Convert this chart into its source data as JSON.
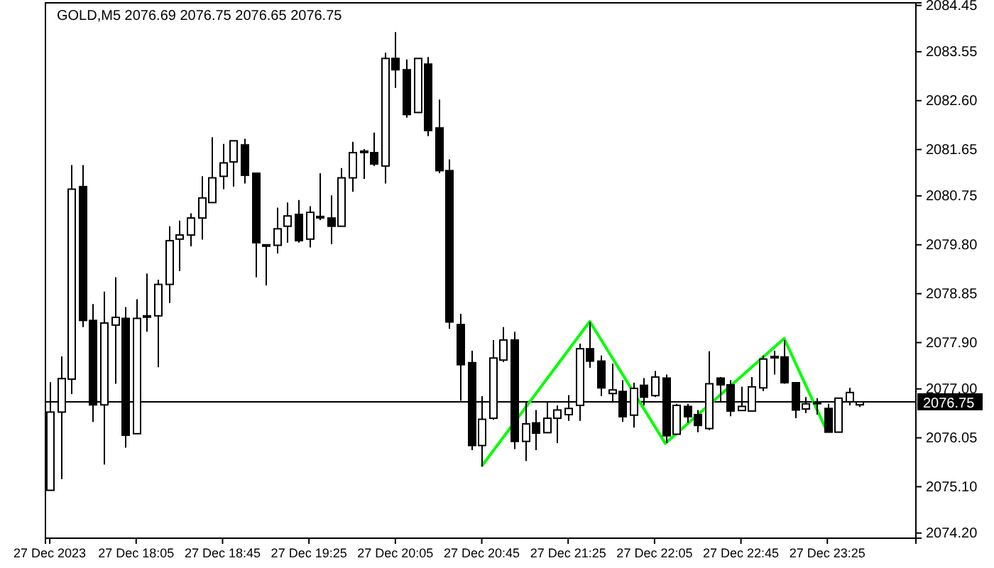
{
  "chart_data": {
    "type": "candlestick",
    "title": "GOLD,M5  2076.69 2076.75 2076.65 2076.75",
    "x": [
      "2023-12-27T17:25",
      "2023-12-27T17:30",
      "2023-12-27T17:35",
      "2023-12-27T17:40",
      "2023-12-27T17:45",
      "2023-12-27T17:50",
      "2023-12-27T17:55",
      "2023-12-27T18:00",
      "2023-12-27T18:05",
      "2023-12-27T18:10",
      "2023-12-27T18:15",
      "2023-12-27T18:20",
      "2023-12-27T18:25",
      "2023-12-27T18:30",
      "2023-12-27T18:35",
      "2023-12-27T18:40",
      "2023-12-27T18:45",
      "2023-12-27T18:50",
      "2023-12-27T18:55",
      "2023-12-27T19:00",
      "2023-12-27T19:05",
      "2023-12-27T19:10",
      "2023-12-27T19:15",
      "2023-12-27T19:20",
      "2023-12-27T19:25",
      "2023-12-27T19:30",
      "2023-12-27T19:35",
      "2023-12-27T19:40",
      "2023-12-27T19:45",
      "2023-12-27T19:50",
      "2023-12-27T19:55",
      "2023-12-27T20:00",
      "2023-12-27T20:05",
      "2023-12-27T20:10",
      "2023-12-27T20:15",
      "2023-12-27T20:20",
      "2023-12-27T20:25",
      "2023-12-27T20:30",
      "2023-12-27T20:35",
      "2023-12-27T20:40",
      "2023-12-27T20:45",
      "2023-12-27T20:50",
      "2023-12-27T20:55",
      "2023-12-27T21:00",
      "2023-12-27T21:05",
      "2023-12-27T21:10",
      "2023-12-27T21:15",
      "2023-12-27T21:20",
      "2023-12-27T21:25",
      "2023-12-27T21:30",
      "2023-12-27T21:35",
      "2023-12-27T21:40",
      "2023-12-27T21:45",
      "2023-12-27T21:50",
      "2023-12-27T21:55",
      "2023-12-27T22:00",
      "2023-12-27T22:05",
      "2023-12-27T22:10",
      "2023-12-27T22:15",
      "2023-12-27T22:20",
      "2023-12-27T22:25",
      "2023-12-27T22:30",
      "2023-12-27T22:35",
      "2023-12-27T22:40",
      "2023-12-27T22:45",
      "2023-12-27T22:50",
      "2023-12-27T22:55",
      "2023-12-27T23:00",
      "2023-12-27T23:05",
      "2023-12-27T23:10",
      "2023-12-27T23:15",
      "2023-12-27T23:20",
      "2023-12-27T23:25",
      "2023-12-27T23:30",
      "2023-12-27T23:35",
      "2023-12-27T23:40"
    ],
    "ohlc": [
      [
        2075.03,
        2077.13,
        2075.03,
        2076.55
      ],
      [
        2076.55,
        2077.63,
        2075.25,
        2077.2
      ],
      [
        2077.19,
        2081.35,
        2076.9,
        2080.88
      ],
      [
        2080.93,
        2081.35,
        2078.2,
        2078.33
      ],
      [
        2078.33,
        2078.65,
        2076.36,
        2076.69
      ],
      [
        2076.69,
        2078.89,
        2075.53,
        2078.28
      ],
      [
        2078.24,
        2079.17,
        2077.1,
        2078.39
      ],
      [
        2078.37,
        2078.59,
        2075.86,
        2076.1
      ],
      [
        2076.13,
        2078.74,
        2076.13,
        2078.37
      ],
      [
        2078.4,
        2079.24,
        2078.11,
        2078.42
      ],
      [
        2078.42,
        2079.12,
        2077.42,
        2079.03
      ],
      [
        2079.03,
        2080.16,
        2078.67,
        2079.88
      ],
      [
        2079.91,
        2080.27,
        2079.29,
        2079.99
      ],
      [
        2079.99,
        2080.41,
        2079.77,
        2080.32
      ],
      [
        2080.32,
        2081.13,
        2079.9,
        2080.71
      ],
      [
        2080.62,
        2081.89,
        2080.62,
        2081.1
      ],
      [
        2081.13,
        2081.76,
        2080.88,
        2081.39
      ],
      [
        2081.41,
        2081.82,
        2080.93,
        2081.82
      ],
      [
        2081.74,
        2081.86,
        2080.99,
        2081.15
      ],
      [
        2081.19,
        2081.2,
        2079.17,
        2079.84
      ],
      [
        2079.78,
        2079.81,
        2079.01,
        2079.8
      ],
      [
        2079.79,
        2080.52,
        2079.63,
        2080.11
      ],
      [
        2080.16,
        2080.62,
        2079.84,
        2080.36
      ],
      [
        2080.39,
        2080.67,
        2079.84,
        2079.88
      ],
      [
        2079.91,
        2080.55,
        2079.75,
        2080.43
      ],
      [
        2080.33,
        2081.19,
        2080.28,
        2080.35
      ],
      [
        2080.32,
        2080.76,
        2079.81,
        2080.16
      ],
      [
        2080.16,
        2081.29,
        2080.16,
        2081.1
      ],
      [
        2081.1,
        2081.8,
        2080.83,
        2081.59
      ],
      [
        2081.6,
        2081.66,
        2081.08,
        2081.62
      ],
      [
        2081.59,
        2081.98,
        2081.33,
        2081.37
      ],
      [
        2081.33,
        2083.53,
        2080.99,
        2083.42
      ],
      [
        2083.42,
        2083.93,
        2082.85,
        2083.2
      ],
      [
        2083.2,
        2083.4,
        2082.27,
        2082.33
      ],
      [
        2082.37,
        2083.42,
        2082.37,
        2083.42
      ],
      [
        2083.31,
        2083.45,
        2081.91,
        2082.02
      ],
      [
        2082.07,
        2082.62,
        2081.19,
        2081.24
      ],
      [
        2081.24,
        2081.46,
        2078.17,
        2078.3
      ],
      [
        2078.25,
        2078.46,
        2076.77,
        2077.47
      ],
      [
        2077.51,
        2077.74,
        2075.81,
        2075.9
      ],
      [
        2075.9,
        2076.86,
        2075.49,
        2076.41
      ],
      [
        2076.43,
        2077.95,
        2076.4,
        2077.6
      ],
      [
        2077.56,
        2078.2,
        2077.52,
        2077.95
      ],
      [
        2077.95,
        2078.11,
        2075.83,
        2075.98
      ],
      [
        2075.98,
        2076.73,
        2075.6,
        2076.32
      ],
      [
        2076.34,
        2076.59,
        2075.81,
        2076.14
      ],
      [
        2076.15,
        2076.75,
        2076.15,
        2076.43
      ],
      [
        2076.43,
        2076.68,
        2075.95,
        2076.59
      ],
      [
        2076.5,
        2076.88,
        2076.38,
        2076.62
      ],
      [
        2076.68,
        2077.88,
        2076.38,
        2077.78
      ],
      [
        2077.78,
        2078.3,
        2077.41,
        2077.54
      ],
      [
        2077.54,
        2077.65,
        2076.86,
        2077.02
      ],
      [
        2076.91,
        2077.49,
        2076.73,
        2076.98
      ],
      [
        2076.95,
        2077.17,
        2076.36,
        2076.46
      ],
      [
        2076.49,
        2077.12,
        2076.25,
        2077.01
      ],
      [
        2077.07,
        2077.21,
        2076.68,
        2076.84
      ],
      [
        2076.87,
        2077.35,
        2076.84,
        2077.23
      ],
      [
        2077.21,
        2077.28,
        2075.95,
        2076.09
      ],
      [
        2076.12,
        2076.71,
        2076.1,
        2076.68
      ],
      [
        2076.66,
        2076.71,
        2076.34,
        2076.46
      ],
      [
        2076.5,
        2076.59,
        2076.16,
        2076.29
      ],
      [
        2076.23,
        2077.73,
        2076.2,
        2077.1
      ],
      [
        2077.21,
        2077.23,
        2076.73,
        2077.08
      ],
      [
        2077.08,
        2077.17,
        2076.47,
        2076.57
      ],
      [
        2076.58,
        2077.04,
        2076.58,
        2076.66
      ],
      [
        2076.57,
        2077.23,
        2076.57,
        2077.04
      ],
      [
        2077.02,
        2077.65,
        2076.96,
        2077.58
      ],
      [
        2077.61,
        2077.74,
        2077.28,
        2077.63
      ],
      [
        2077.62,
        2077.95,
        2077.1,
        2077.12
      ],
      [
        2077.12,
        2077.12,
        2076.43,
        2076.59
      ],
      [
        2076.61,
        2076.84,
        2076.53,
        2076.71
      ],
      [
        2076.72,
        2076.82,
        2076.5,
        2076.74
      ],
      [
        2076.62,
        2076.71,
        2076.16,
        2076.16
      ],
      [
        2076.16,
        2076.82,
        2076.16,
        2076.82
      ],
      [
        2076.75,
        2077.02,
        2076.68,
        2076.93
      ],
      [
        2076.69,
        2076.75,
        2076.65,
        2076.75
      ]
    ],
    "series": [
      {
        "type": "line",
        "color": "#00ff00",
        "x": [
          "2023-12-27T20:45",
          "2023-12-27T21:35",
          "2023-12-27T22:10",
          "2023-12-27T23:05",
          "2023-12-27T23:25"
        ],
        "values": [
          2075.5,
          2078.31,
          2075.94,
          2077.98,
          2076.16
        ]
      }
    ],
    "xlim": [
      "2023-12-27T17:23",
      "2023-12-28T00:06"
    ],
    "xticks": [
      {
        "value": "2023-12-27T17:25",
        "label": "27 Dec 2023"
      },
      {
        "value": "2023-12-27T18:05",
        "label": "27 Dec 18:05"
      },
      {
        "value": "2023-12-27T18:45",
        "label": "27 Dec 18:45"
      },
      {
        "value": "2023-12-27T19:25",
        "label": "27 Dec 19:25"
      },
      {
        "value": "2023-12-27T20:05",
        "label": "27 Dec 20:05"
      },
      {
        "value": "2023-12-27T20:45",
        "label": "27 Dec 20:45"
      },
      {
        "value": "2023-12-27T21:25",
        "label": "27 Dec 21:25"
      },
      {
        "value": "2023-12-27T22:05",
        "label": "27 Dec 22:05"
      },
      {
        "value": "2023-12-27T22:45",
        "label": "27 Dec 22:45"
      },
      {
        "value": "2023-12-27T23:25",
        "label": "27 Dec 23:25"
      }
    ],
    "ylim": [
      2074.1,
      2084.5
    ],
    "yticks": [
      2084.45,
      2083.55,
      {
        "value": 2082.6,
        "label": "2082.60"
      },
      2081.65,
      2080.75,
      {
        "value": 2079.8,
        "label": "2079.80"
      },
      2078.85,
      {
        "value": 2077.9,
        "label": "2077.90"
      },
      {
        "value": 2077,
        "label": "2077.00"
      },
      2076.05,
      {
        "value": 2075.1,
        "label": "2075.10"
      },
      {
        "value": 2074.2,
        "label": "2074.20"
      }
    ],
    "ref_lines": [
      {
        "axis": "y",
        "value": 2076.75,
        "label": "2076.75",
        "color": "#000000"
      }
    ],
    "grid": false
  }
}
